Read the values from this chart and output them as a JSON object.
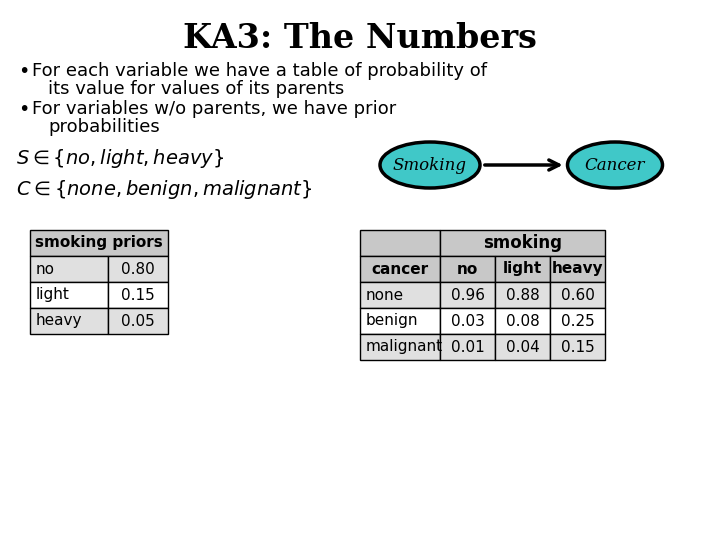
{
  "title": "KA3: The Numbers",
  "bullet1_line1": "For each variable we have a table of probability of",
  "bullet1_line2": "its value for values of its parents",
  "bullet2_line1": "For variables w/o parents, we have prior",
  "bullet2_line2": "probabilities",
  "node_smoking": "Smoking",
  "node_cancer": "Cancer",
  "node_color": "#40C8C8",
  "smoking_priors_header": "smoking priors",
  "smoking_priors_rows": [
    [
      "no",
      "0.80"
    ],
    [
      "light",
      "0.15"
    ],
    [
      "heavy",
      "0.05"
    ]
  ],
  "cpt_col_header": "smoking",
  "cpt_col1": "cancer",
  "cpt_cols": [
    "no",
    "light",
    "heavy"
  ],
  "cpt_rows": [
    [
      "none",
      "0.96",
      "0.88",
      "0.60"
    ],
    [
      "benign",
      "0.03",
      "0.08",
      "0.25"
    ],
    [
      "malignant",
      "0.01",
      "0.04",
      "0.15"
    ]
  ],
  "bg_color": "#ffffff",
  "text_color": "#000000",
  "header_gray": "#c8c8c8",
  "row_gray": "#e0e0e0"
}
